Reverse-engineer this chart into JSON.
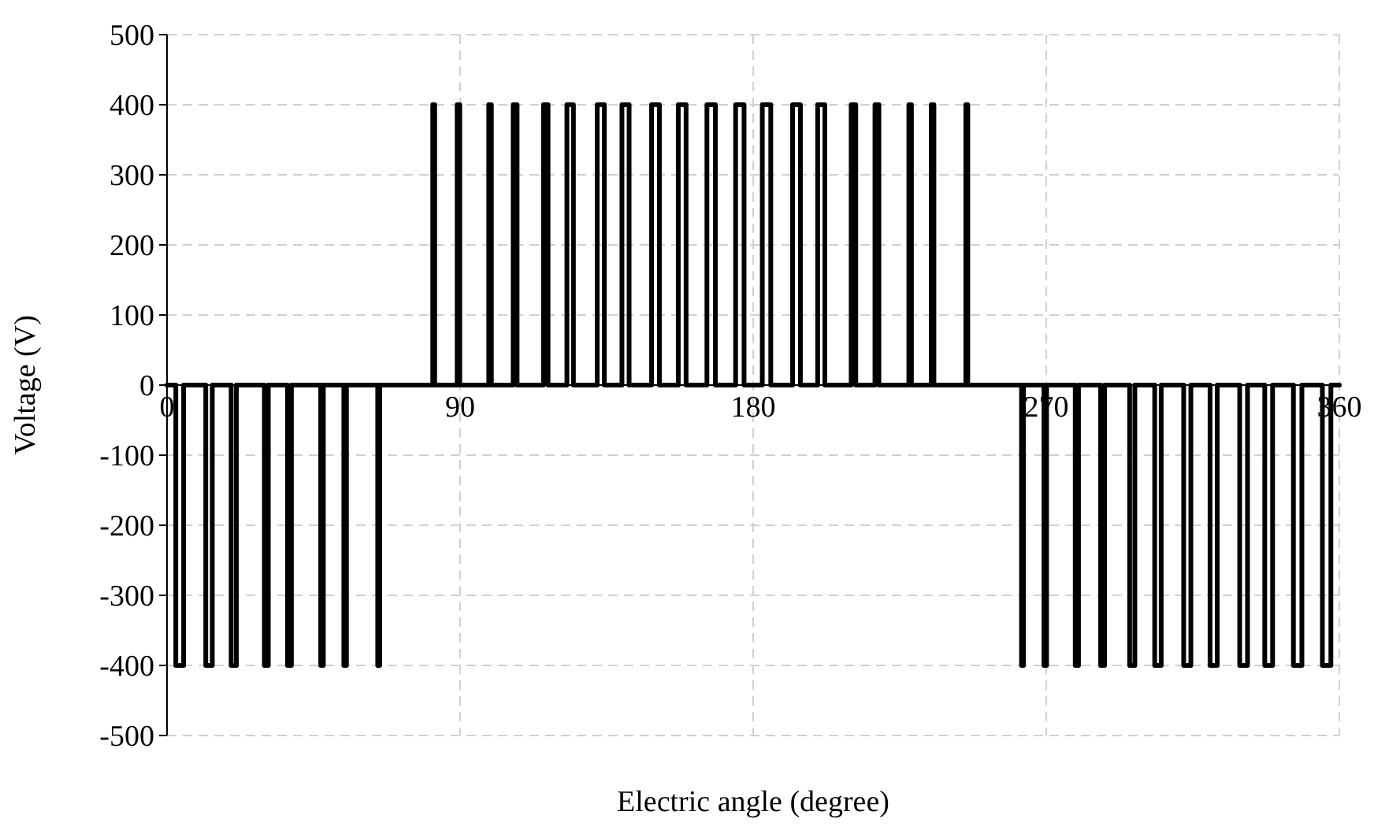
{
  "chart_data": {
    "type": "line",
    "xlabel": "Electric angle (degree)",
    "ylabel": "Voltage (V)",
    "xlim": [
      0,
      360
    ],
    "xticks": [
      0,
      90,
      180,
      270,
      360
    ],
    "ylim": [
      -500,
      500
    ],
    "yticks": [
      -500,
      -400,
      -300,
      -200,
      -100,
      0,
      100,
      200,
      300,
      400,
      500
    ],
    "grid": true,
    "marker": "none",
    "line_style": "solid",
    "series": [
      {
        "color": "#000000",
        "x": [
          0,
          2.7,
          2.7,
          5.1,
          5.1,
          11.9,
          11.9,
          13.9,
          13.9,
          19.7,
          19.7,
          21.3,
          21.3,
          29.9,
          29.9,
          31.1,
          31.1,
          37.0,
          37.0,
          38.2,
          38.2,
          47.2,
          47.2,
          48.0,
          48.0,
          54.3,
          54.3,
          55.1,
          55.1,
          64.7,
          64.7,
          65.3,
          65.3,
          81.6,
          81.6,
          82.2,
          82.2,
          89.1,
          89.1,
          89.9,
          89.9,
          98.8,
          98.8,
          99.6,
          99.6,
          106.3,
          106.3,
          107.5,
          107.5,
          115.6,
          115.6,
          117.0,
          117.0,
          122.8,
          122.8,
          124.8,
          124.8,
          132.1,
          132.1,
          134.3,
          134.3,
          139.7,
          139.7,
          141.9,
          141.9,
          148.8,
          148.8,
          151.2,
          151.2,
          157.0,
          157.0,
          159.4,
          159.4,
          165.8,
          165.8,
          168.4,
          168.4,
          174.6,
          174.6,
          177.2,
          177.2,
          182.8,
          182.8,
          185.4,
          185.4,
          192.1,
          192.1,
          194.5,
          194.5,
          199.8,
          199.8,
          202.0,
          202.0,
          210.1,
          210.1,
          211.5,
          211.5,
          217.4,
          217.4,
          218.6,
          218.6,
          227.8,
          227.8,
          228.6,
          228.6,
          234.7,
          234.7,
          235.5,
          235.5,
          245.3,
          245.3,
          245.9,
          245.9,
          262.4,
          262.4,
          263.0,
          263.0,
          269.3,
          269.3,
          270.1,
          270.1,
          278.9,
          278.9,
          279.9,
          279.9,
          286.7,
          286.7,
          287.9,
          287.9,
          295.6,
          295.6,
          297.2,
          297.2,
          303.3,
          303.3,
          305.3,
          305.3,
          312.2,
          312.2,
          314.4,
          314.4,
          320.3,
          320.3,
          322.5,
          322.5,
          329.4,
          329.4,
          331.8,
          331.8,
          337.1,
          337.1,
          339.5,
          339.5,
          345.9,
          345.9,
          348.5,
          348.5,
          354.8,
          354.8,
          357.4,
          357.4,
          360
        ],
        "values": [
          0,
          0,
          -400,
          -400,
          0,
          0,
          -400,
          -400,
          0,
          0,
          -400,
          -400,
          0,
          0,
          -400,
          -400,
          0,
          0,
          -400,
          -400,
          0,
          0,
          -400,
          -400,
          0,
          0,
          -400,
          -400,
          0,
          0,
          -400,
          -400,
          0,
          0,
          400,
          400,
          0,
          0,
          400,
          400,
          0,
          0,
          400,
          400,
          0,
          0,
          400,
          400,
          0,
          0,
          400,
          400,
          0,
          0,
          400,
          400,
          0,
          0,
          400,
          400,
          0,
          0,
          400,
          400,
          0,
          0,
          400,
          400,
          0,
          0,
          400,
          400,
          0,
          0,
          400,
          400,
          0,
          0,
          400,
          400,
          0,
          0,
          400,
          400,
          0,
          0,
          400,
          400,
          0,
          0,
          400,
          400,
          0,
          0,
          400,
          400,
          0,
          0,
          400,
          400,
          0,
          0,
          400,
          400,
          0,
          0,
          400,
          400,
          0,
          0,
          400,
          400,
          0,
          0,
          -400,
          -400,
          0,
          0,
          -400,
          -400,
          0,
          0,
          -400,
          -400,
          0,
          0,
          -400,
          -400,
          0,
          0,
          -400,
          -400,
          0,
          0,
          -400,
          -400,
          0,
          0,
          -400,
          -400,
          0,
          0,
          -400,
          -400,
          0,
          0,
          -400,
          -400,
          0,
          0,
          -400,
          -400,
          0,
          0,
          -400,
          -400,
          0,
          0,
          -400,
          -400,
          0,
          0
        ]
      }
    ]
  }
}
